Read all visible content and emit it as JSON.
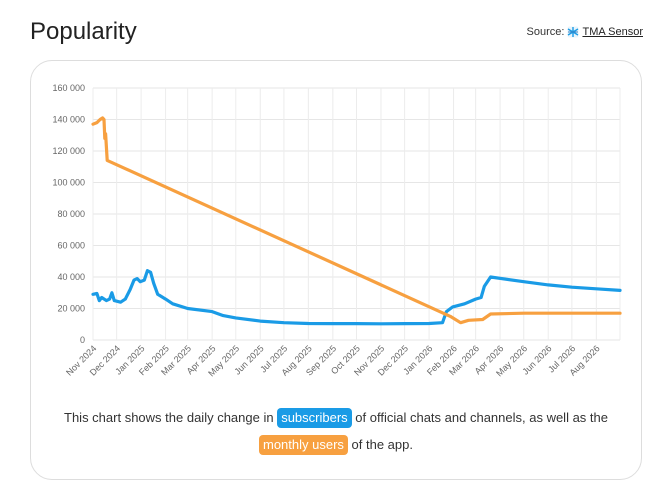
{
  "header": {
    "title": "Popularity",
    "source_prefix": "Source:",
    "source_name": "TMA Sensor",
    "source_icon": "tma-sensor-logo-icon"
  },
  "caption": {
    "part1": "This chart shows the daily change in",
    "series1_label": "subscribers",
    "part2": "of official chats and channels, as well as the",
    "series2_label": "monthly users",
    "part3": "of the app."
  },
  "chart_data": {
    "type": "line",
    "title": "",
    "xlabel": "",
    "ylabel": "",
    "ylim": [
      0,
      160000
    ],
    "yticks": [
      0,
      20000,
      40000,
      60000,
      80000,
      100000,
      120000,
      140000,
      160000
    ],
    "ytick_labels": [
      "0",
      "20 000",
      "40 000",
      "60 000",
      "80 000",
      "100 000",
      "120 000",
      "140 000",
      "160 000"
    ],
    "xlim": [
      "2024-11-01",
      "2026-08-31"
    ],
    "xtick_labels": [
      "Nov 2024",
      "Dec 2024",
      "Jan 2025",
      "Feb 2025",
      "Mar 2025",
      "Apr 2025",
      "May 2025",
      "Jun 2025",
      "Jul 2025",
      "Aug 2025",
      "Sep 2025",
      "Oct 2025",
      "Nov 2025",
      "Dec 2025",
      "Jan 2026",
      "Feb 2026",
      "Mar 2026",
      "Apr 2026",
      "May 2026",
      "Jun 2026",
      "Jul 2026",
      "Aug 2026"
    ],
    "xtick_dates": [
      "2024-11-01",
      "2024-12-01",
      "2025-01-01",
      "2025-02-01",
      "2025-03-01",
      "2025-04-01",
      "2025-05-01",
      "2025-06-01",
      "2025-07-01",
      "2025-08-01",
      "2025-09-01",
      "2025-10-01",
      "2025-11-01",
      "2025-12-01",
      "2026-01-01",
      "2026-02-01",
      "2026-03-01",
      "2026-04-01",
      "2026-05-01",
      "2026-06-01",
      "2026-07-01",
      "2026-08-01"
    ],
    "grid": true,
    "legend": "none",
    "series": [
      {
        "label_ref": "subscribers",
        "color": "#1a9be6",
        "points": [
          [
            "2024-11-01",
            29000
          ],
          [
            "2024-11-06",
            29500
          ],
          [
            "2024-11-09",
            25000
          ],
          [
            "2024-11-12",
            27000
          ],
          [
            "2024-11-18",
            25000
          ],
          [
            "2024-11-22",
            26000
          ],
          [
            "2024-11-25",
            30000
          ],
          [
            "2024-11-28",
            25000
          ],
          [
            "2024-12-06",
            24000
          ],
          [
            "2024-12-12",
            26000
          ],
          [
            "2024-12-18",
            32000
          ],
          [
            "2024-12-23",
            38000
          ],
          [
            "2024-12-27",
            39000
          ],
          [
            "2024-12-31",
            37000
          ],
          [
            "2025-01-05",
            38000
          ],
          [
            "2025-01-09",
            44000
          ],
          [
            "2025-01-13",
            43000
          ],
          [
            "2025-01-17",
            36000
          ],
          [
            "2025-01-22",
            29000
          ],
          [
            "2025-02-01",
            26000
          ],
          [
            "2025-02-10",
            23000
          ],
          [
            "2025-03-01",
            20000
          ],
          [
            "2025-04-01",
            18000
          ],
          [
            "2025-04-15",
            15500
          ],
          [
            "2025-05-01",
            14000
          ],
          [
            "2025-06-01",
            12000
          ],
          [
            "2025-07-01",
            11000
          ],
          [
            "2025-08-01",
            10500
          ],
          [
            "2025-09-01",
            10400
          ],
          [
            "2025-10-01",
            10400
          ],
          [
            "2025-11-01",
            10300
          ],
          [
            "2025-12-01",
            10400
          ],
          [
            "2026-01-01",
            10500
          ],
          [
            "2026-01-18",
            11000
          ],
          [
            "2026-01-23",
            18000
          ],
          [
            "2026-01-31",
            21000
          ],
          [
            "2026-02-15",
            23000
          ],
          [
            "2026-03-01",
            26000
          ],
          [
            "2026-03-08",
            27000
          ],
          [
            "2026-03-12",
            34000
          ],
          [
            "2026-03-20",
            40000
          ],
          [
            "2026-05-01",
            37000
          ],
          [
            "2026-06-01",
            35000
          ],
          [
            "2026-07-01",
            33500
          ],
          [
            "2026-08-01",
            32500
          ],
          [
            "2026-08-31",
            31500
          ]
        ]
      },
      {
        "label_ref": "monthly users",
        "color": "#f7a040",
        "points": [
          [
            "2024-11-01",
            137000
          ],
          [
            "2024-11-06",
            138000
          ],
          [
            "2024-11-10",
            140000
          ],
          [
            "2024-11-13",
            141000
          ],
          [
            "2024-11-15",
            140000
          ],
          [
            "2024-11-16",
            128000
          ],
          [
            "2024-11-17",
            131000
          ],
          [
            "2024-11-19",
            114000
          ],
          [
            "2026-01-28",
            15000
          ],
          [
            "2026-02-10",
            11000
          ],
          [
            "2026-02-20",
            12500
          ],
          [
            "2026-03-10",
            13000
          ],
          [
            "2026-03-20",
            16500
          ],
          [
            "2026-05-01",
            17000
          ],
          [
            "2026-08-31",
            17000
          ]
        ]
      }
    ]
  }
}
